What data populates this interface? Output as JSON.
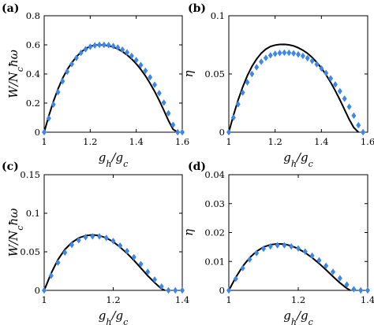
{
  "chart_data": [
    {
      "type": "line",
      "panel_label": "(a)",
      "xlabel": "g_h/g_c",
      "ylabel": "W/N_cħω",
      "xlim": [
        1,
        1.6
      ],
      "ylim": [
        0,
        0.8
      ],
      "xticks": [
        1,
        1.2,
        1.4,
        1.6
      ],
      "xtick_labels": [
        "1",
        "1.2",
        "1.4",
        "1.6"
      ],
      "yticks": [
        0,
        0.2,
        0.4,
        0.6,
        0.8
      ],
      "ytick_labels": [
        "0",
        "0.2",
        "0.4",
        "0.6",
        "0.8"
      ],
      "grid": false,
      "series": [
        {
          "style": "solid-line",
          "color": "#000000",
          "x": [
            1.0,
            1.02,
            1.04,
            1.06,
            1.08,
            1.1,
            1.12,
            1.14,
            1.16,
            1.18,
            1.2,
            1.22,
            1.24,
            1.26,
            1.28,
            1.3,
            1.32,
            1.34,
            1.36,
            1.38,
            1.4,
            1.42,
            1.44,
            1.46,
            1.48,
            1.5,
            1.52,
            1.54,
            1.56,
            1.58
          ],
          "y": [
            0,
            0.112,
            0.211,
            0.297,
            0.37,
            0.43,
            0.477,
            0.518,
            0.55,
            0.574,
            0.59,
            0.598,
            0.6,
            0.598,
            0.594,
            0.585,
            0.572,
            0.554,
            0.531,
            0.503,
            0.47,
            0.431,
            0.387,
            0.336,
            0.28,
            0.218,
            0.15,
            0.08,
            0.02,
            0
          ]
        },
        {
          "style": "diamond-markers",
          "color": "#3d87e8",
          "x": [
            1.0,
            1.02,
            1.04,
            1.06,
            1.08,
            1.1,
            1.12,
            1.14,
            1.16,
            1.18,
            1.2,
            1.22,
            1.24,
            1.26,
            1.28,
            1.3,
            1.32,
            1.34,
            1.36,
            1.38,
            1.4,
            1.42,
            1.44,
            1.46,
            1.48,
            1.5,
            1.52,
            1.54,
            1.56,
            1.58,
            1.6
          ],
          "y": [
            0,
            0.095,
            0.19,
            0.275,
            0.35,
            0.415,
            0.468,
            0.51,
            0.545,
            0.57,
            0.587,
            0.596,
            0.6,
            0.6,
            0.598,
            0.592,
            0.582,
            0.567,
            0.548,
            0.524,
            0.495,
            0.461,
            0.422,
            0.377,
            0.326,
            0.268,
            0.203,
            0.13,
            0.05,
            0,
            0
          ]
        }
      ]
    },
    {
      "type": "line",
      "panel_label": "(b)",
      "xlabel": "g_h/g_c",
      "ylabel": "η",
      "xlim": [
        1,
        1.6
      ],
      "ylim": [
        0,
        0.1
      ],
      "xticks": [
        1,
        1.2,
        1.4,
        1.6
      ],
      "xtick_labels": [
        "1",
        "1.2",
        "1.4",
        "1.6"
      ],
      "yticks": [
        0,
        0.05,
        0.1
      ],
      "ytick_labels": [
        "0",
        "0.05",
        "0.1"
      ],
      "grid": false,
      "series": [
        {
          "style": "solid-line",
          "color": "#000000",
          "x": [
            1.0,
            1.02,
            1.04,
            1.06,
            1.08,
            1.1,
            1.12,
            1.14,
            1.16,
            1.18,
            1.2,
            1.22,
            1.24,
            1.26,
            1.28,
            1.3,
            1.32,
            1.34,
            1.36,
            1.38,
            1.4,
            1.42,
            1.44,
            1.46,
            1.48,
            1.5,
            1.52,
            1.54,
            1.56
          ],
          "y": [
            0,
            0.0145,
            0.0275,
            0.0388,
            0.0485,
            0.0565,
            0.0628,
            0.0678,
            0.0713,
            0.0736,
            0.0748,
            0.0753,
            0.0754,
            0.075,
            0.0741,
            0.0725,
            0.0704,
            0.0677,
            0.0642,
            0.06,
            0.055,
            0.0493,
            0.0428,
            0.0356,
            0.0278,
            0.0194,
            0.011,
            0.004,
            0
          ]
        },
        {
          "style": "diamond-markers",
          "color": "#3d87e8",
          "x": [
            1.0,
            1.02,
            1.04,
            1.06,
            1.08,
            1.1,
            1.12,
            1.14,
            1.16,
            1.18,
            1.2,
            1.22,
            1.24,
            1.26,
            1.28,
            1.3,
            1.32,
            1.34,
            1.36,
            1.38,
            1.4,
            1.42,
            1.44,
            1.46,
            1.48,
            1.5,
            1.52,
            1.54,
            1.56,
            1.58
          ],
          "y": [
            0,
            0.0125,
            0.024,
            0.034,
            0.0428,
            0.05,
            0.0558,
            0.0605,
            0.0638,
            0.066,
            0.0673,
            0.068,
            0.0683,
            0.0682,
            0.0677,
            0.0668,
            0.0655,
            0.0636,
            0.0612,
            0.0583,
            0.0548,
            0.0508,
            0.0462,
            0.041,
            0.0352,
            0.0288,
            0.0218,
            0.0142,
            0.006,
            0
          ]
        }
      ]
    },
    {
      "type": "line",
      "panel_label": "(c)",
      "xlabel": "g_h/g_c",
      "ylabel": "W/N_cħω",
      "xlim": [
        1,
        1.4
      ],
      "ylim": [
        0,
        0.15
      ],
      "xticks": [
        1,
        1.2,
        1.4
      ],
      "xtick_labels": [
        "1",
        "1.2",
        "1.4"
      ],
      "yticks": [
        0,
        0.05,
        0.1,
        0.15
      ],
      "ytick_labels": [
        "0",
        "0.05",
        "0.1",
        "0.15"
      ],
      "grid": false,
      "series": [
        {
          "style": "solid-line",
          "color": "#000000",
          "x": [
            1.0,
            1.02,
            1.04,
            1.06,
            1.08,
            1.1,
            1.12,
            1.14,
            1.16,
            1.18,
            1.2,
            1.22,
            1.24,
            1.26,
            1.28,
            1.3,
            1.32,
            1.34,
            1.35
          ],
          "y": [
            0,
            0.022,
            0.04,
            0.053,
            0.062,
            0.068,
            0.071,
            0.072,
            0.071,
            0.068,
            0.063,
            0.056,
            0.048,
            0.039,
            0.029,
            0.019,
            0.01,
            0.002,
            0
          ]
        },
        {
          "style": "diamond-markers",
          "color": "#3d87e8",
          "x": [
            1.0,
            1.02,
            1.04,
            1.06,
            1.08,
            1.1,
            1.12,
            1.14,
            1.16,
            1.18,
            1.2,
            1.22,
            1.24,
            1.26,
            1.28,
            1.3,
            1.32,
            1.34,
            1.36,
            1.38,
            1.4
          ],
          "y": [
            0,
            0.019,
            0.036,
            0.049,
            0.059,
            0.065,
            0.069,
            0.07,
            0.07,
            0.068,
            0.064,
            0.058,
            0.051,
            0.043,
            0.034,
            0.024,
            0.014,
            0.005,
            0,
            0,
            0
          ]
        }
      ]
    },
    {
      "type": "line",
      "panel_label": "(d)",
      "xlabel": "g_h/g_c",
      "ylabel": "η",
      "xlim": [
        1,
        1.4
      ],
      "ylim": [
        0,
        0.04
      ],
      "xticks": [
        1,
        1.2,
        1.4
      ],
      "xtick_labels": [
        "1",
        "1.2",
        "1.4"
      ],
      "yticks": [
        0,
        0.01,
        0.02,
        0.03,
        0.04
      ],
      "ytick_labels": [
        "0",
        "0.01",
        "0.02",
        "0.03",
        "0.04"
      ],
      "grid": false,
      "series": [
        {
          "style": "solid-line",
          "color": "#000000",
          "x": [
            1.0,
            1.02,
            1.04,
            1.06,
            1.08,
            1.1,
            1.12,
            1.14,
            1.16,
            1.18,
            1.2,
            1.22,
            1.24,
            1.26,
            1.28,
            1.3,
            1.32,
            1.34,
            1.35
          ],
          "y": [
            0,
            0.0045,
            0.0083,
            0.0113,
            0.0135,
            0.015,
            0.0158,
            0.0161,
            0.016,
            0.0154,
            0.0144,
            0.013,
            0.0113,
            0.0093,
            0.0071,
            0.0048,
            0.0026,
            0.0007,
            0
          ]
        },
        {
          "style": "diamond-markers",
          "color": "#3d87e8",
          "x": [
            1.0,
            1.02,
            1.04,
            1.06,
            1.08,
            1.1,
            1.12,
            1.14,
            1.16,
            1.18,
            1.2,
            1.22,
            1.24,
            1.26,
            1.28,
            1.3,
            1.32,
            1.34,
            1.36,
            1.38,
            1.4
          ],
          "y": [
            0,
            0.004,
            0.0077,
            0.0107,
            0.0129,
            0.0144,
            0.0152,
            0.0156,
            0.0156,
            0.0152,
            0.0145,
            0.0134,
            0.012,
            0.0104,
            0.0085,
            0.0064,
            0.0042,
            0.002,
            0.0004,
            0,
            0
          ]
        }
      ]
    }
  ]
}
